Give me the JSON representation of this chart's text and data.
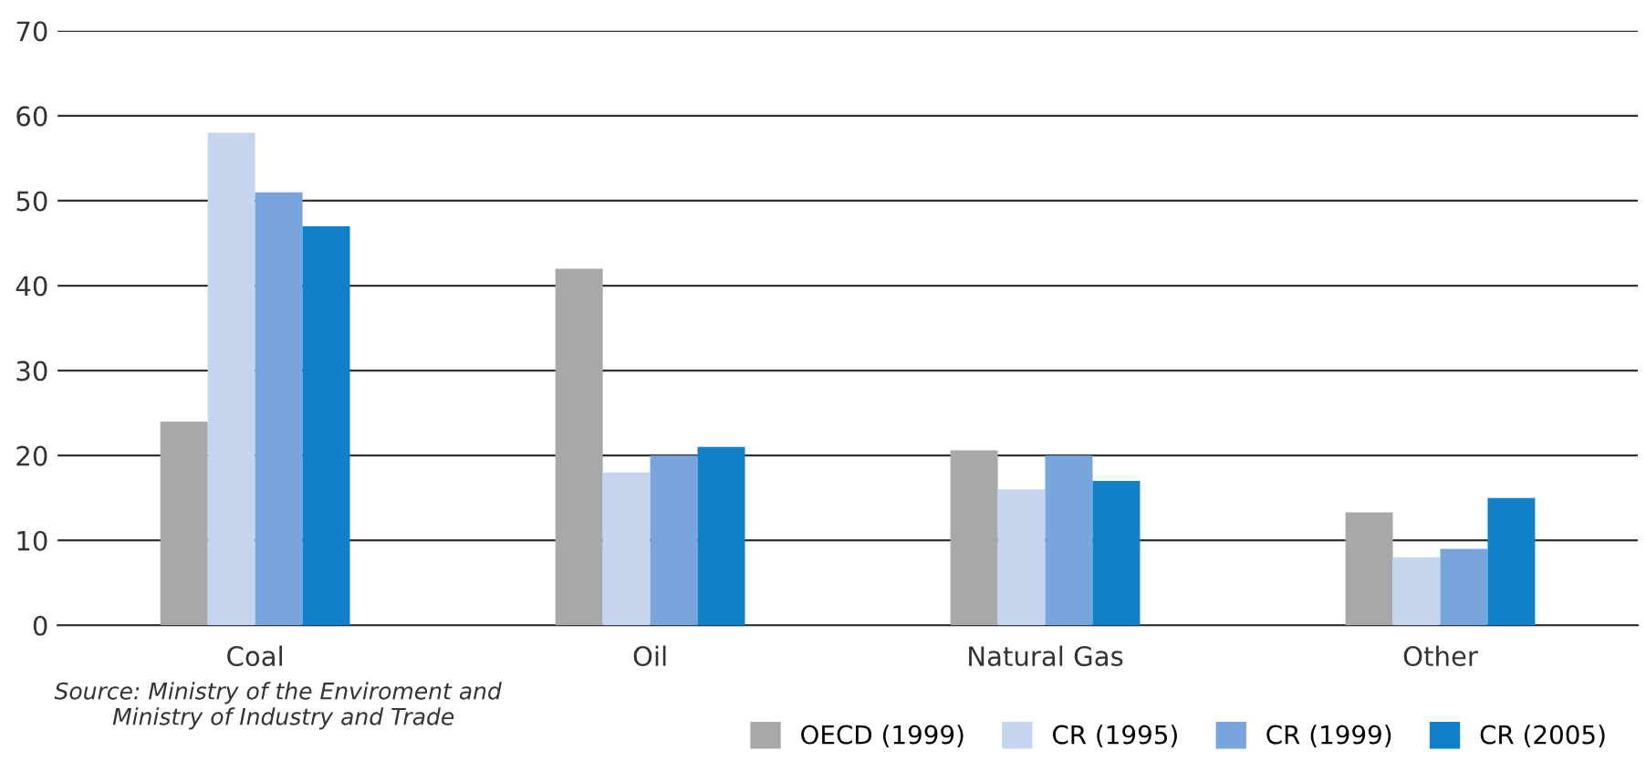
{
  "chart_data": {
    "type": "bar",
    "categories": [
      "Coal",
      "Oil",
      "Natural Gas",
      "Other"
    ],
    "series": [
      {
        "name": "OECD (1999)",
        "color": "#a7a8aa",
        "values": [
          24,
          42,
          20.6,
          13.3
        ]
      },
      {
        "name": "CR (1995)",
        "color": "#c5d5ee",
        "values": [
          58,
          18,
          16,
          8
        ]
      },
      {
        "name": "CR (1999)",
        "color": "#78a6dc",
        "values": [
          51,
          20,
          20,
          9
        ]
      },
      {
        "name": "CR (2005)",
        "color": "#1080c8",
        "values": [
          47,
          21,
          17,
          15
        ]
      }
    ],
    "ylim": [
      0,
      70
    ],
    "yticks": [
      0,
      10,
      20,
      30,
      40,
      50,
      60,
      70
    ],
    "grid": "y",
    "legend": "bottom right",
    "annotations": [
      "Source: Ministry of the Enviroment and Ministry of Industry and Trade"
    ]
  }
}
